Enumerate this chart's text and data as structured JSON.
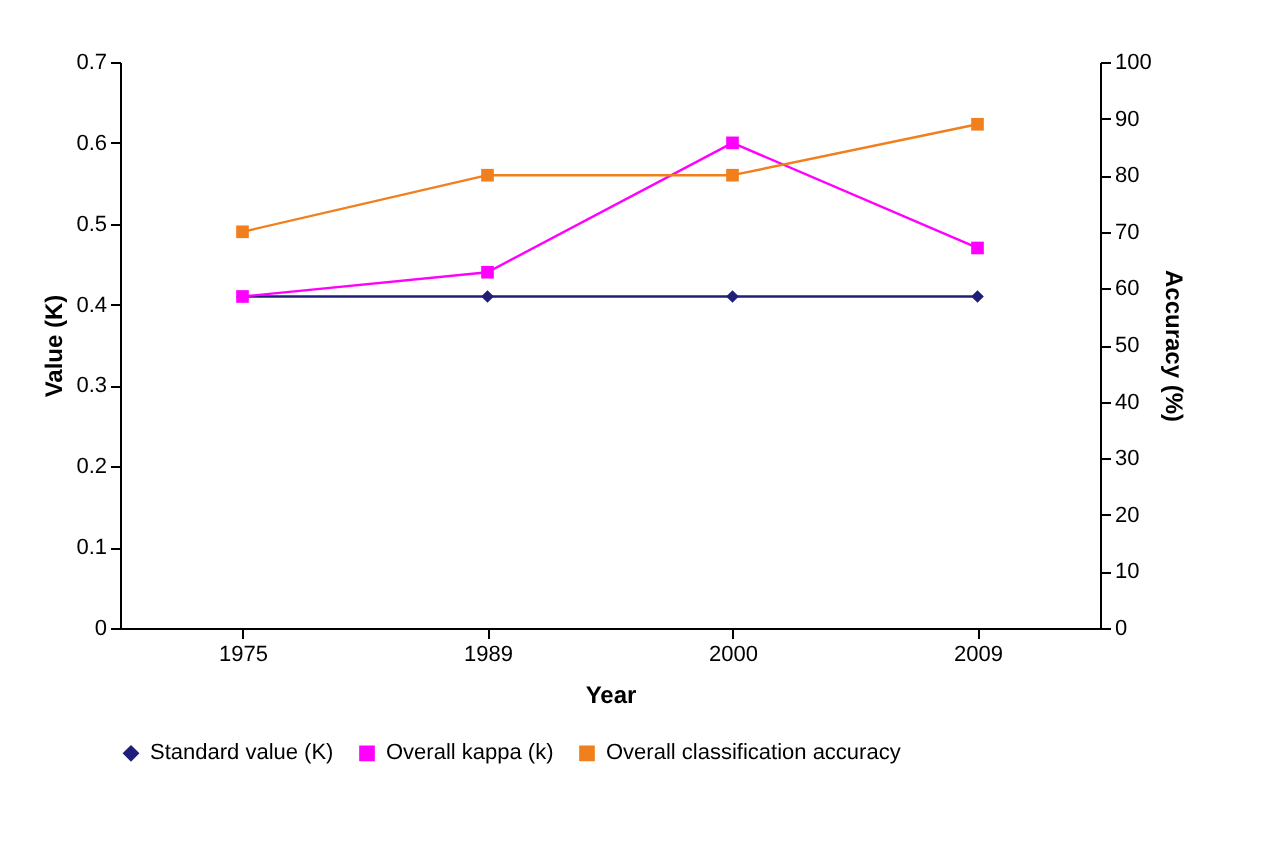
{
  "chart_data": {
    "type": "line",
    "xlabel": "Year",
    "ylabel": "Value (K)",
    "y2label": "Accuracy (%)",
    "categories": [
      "1975",
      "1989",
      "2000",
      "2009"
    ],
    "series": [
      {
        "name": "Standard value (K)",
        "color": "#1f1f7a",
        "marker": "diamond",
        "values": [
          0.41,
          0.41,
          0.41,
          0.41
        ]
      },
      {
        "name": "Overall kappa (k)",
        "color": "#ff00ff",
        "marker": "square",
        "values": [
          0.41,
          0.44,
          0.6,
          0.47
        ]
      },
      {
        "name": "Overall classification accuracy",
        "color": "#f07f1c",
        "marker": "square",
        "axis": "y2",
        "values": [
          70,
          80,
          80,
          89
        ]
      }
    ],
    "ylim": [
      0,
      0.7
    ],
    "yticks": [
      0,
      0.1,
      0.2,
      0.3,
      0.4,
      0.5,
      0.6,
      0.7
    ],
    "y2lim": [
      0,
      100
    ],
    "y2ticks": [
      0,
      10,
      20,
      30,
      40,
      50,
      60,
      70,
      80,
      90,
      100
    ],
    "grid": false,
    "legend": "bottom",
    "line_style": "solid"
  }
}
